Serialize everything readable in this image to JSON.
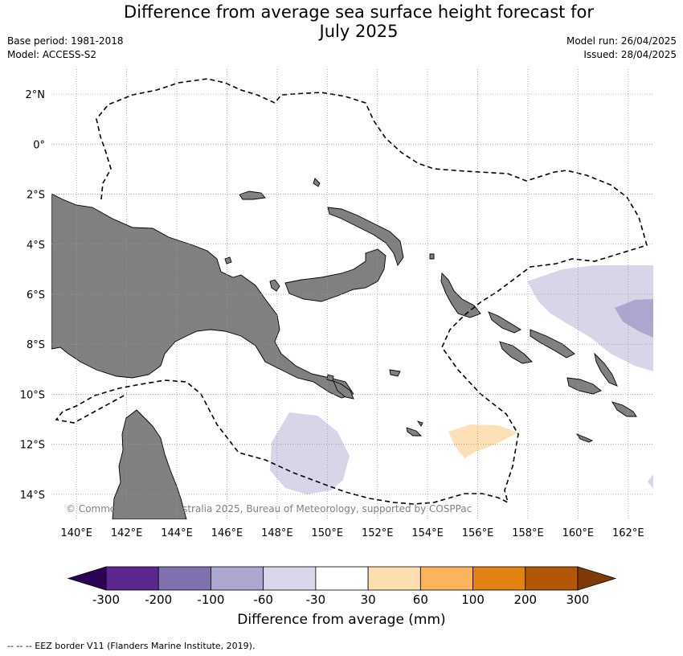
{
  "title_line1": "Difference from average sea surface height forecast for",
  "title_line2": "July 2025",
  "base_period": "Base period: 1981-2018",
  "model": "Model: ACCESS-S2",
  "model_run": "Model run: 26/04/2025",
  "issued": "Issued: 28/04/2025",
  "copyright": "© Commonwealth of Australia 2025, Bureau of Meteorology, supported by COSPPac",
  "footnote": "--  --  -- EEZ border V11 (Flanders Marine Institute, 2019).",
  "map": {
    "lon_labels": [
      "140°E",
      "142°E",
      "144°E",
      "146°E",
      "148°E",
      "150°E",
      "152°E",
      "154°E",
      "156°E",
      "158°E",
      "160°E",
      "162°E"
    ],
    "lat_labels": [
      "2°N",
      "0°",
      "2°S",
      "4°S",
      "6°S",
      "8°S",
      "10°S",
      "12°S",
      "14°S"
    ],
    "lon_range": [
      139,
      163
    ],
    "lat_range": [
      3,
      -15
    ],
    "land_color": "#808080",
    "eez_style": "dashed"
  },
  "colorbar": {
    "label": "Difference from average (mm)",
    "ticks": [
      "-300",
      "-200",
      "-100",
      "-60",
      "-30",
      "30",
      "60",
      "100",
      "200",
      "300"
    ],
    "colors": [
      "#5b2690",
      "#8070ae",
      "#ada7d0",
      "#d8d8ea",
      "#ffffff",
      "#fddeb0",
      "#fbb45c",
      "#e28212",
      "#b25608"
    ],
    "under_color": "#2d0455",
    "over_color": "#7f3b07"
  }
}
